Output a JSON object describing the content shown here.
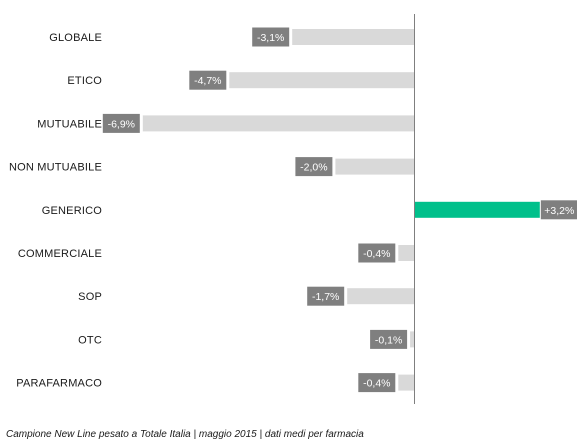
{
  "chart_data": {
    "type": "bar",
    "orientation": "horizontal",
    "categories": [
      "GLOBALE",
      "ETICO",
      "MUTUABILE",
      "NON MUTUABILE",
      "GENERICO",
      "COMMERCIALE",
      "SOP",
      "OTC",
      "PARAFARMACO"
    ],
    "values": [
      -3.1,
      -4.7,
      -6.9,
      -2.0,
      3.2,
      -0.4,
      -1.7,
      -0.1,
      -0.4
    ],
    "value_labels": [
      "-3,1%",
      "-4,7%",
      "-6,9%",
      "-2,0%",
      "+3,2%",
      "-0,4%",
      "-1,7%",
      "-0,1%",
      "-0,4%"
    ],
    "xlim": [
      -8.0,
      4.8
    ],
    "unit": "%",
    "title": "",
    "xlabel": "",
    "ylabel": "",
    "grid": false,
    "colors": {
      "negative_bar": "#d9d9d9",
      "positive_bar": "#00c08b",
      "label_box": "#7f7f7f",
      "axis": "#7f7f7f"
    }
  },
  "footnote": "Campione New Line pesato a Totale Italia | maggio 2015 | dati medi per farmacia"
}
